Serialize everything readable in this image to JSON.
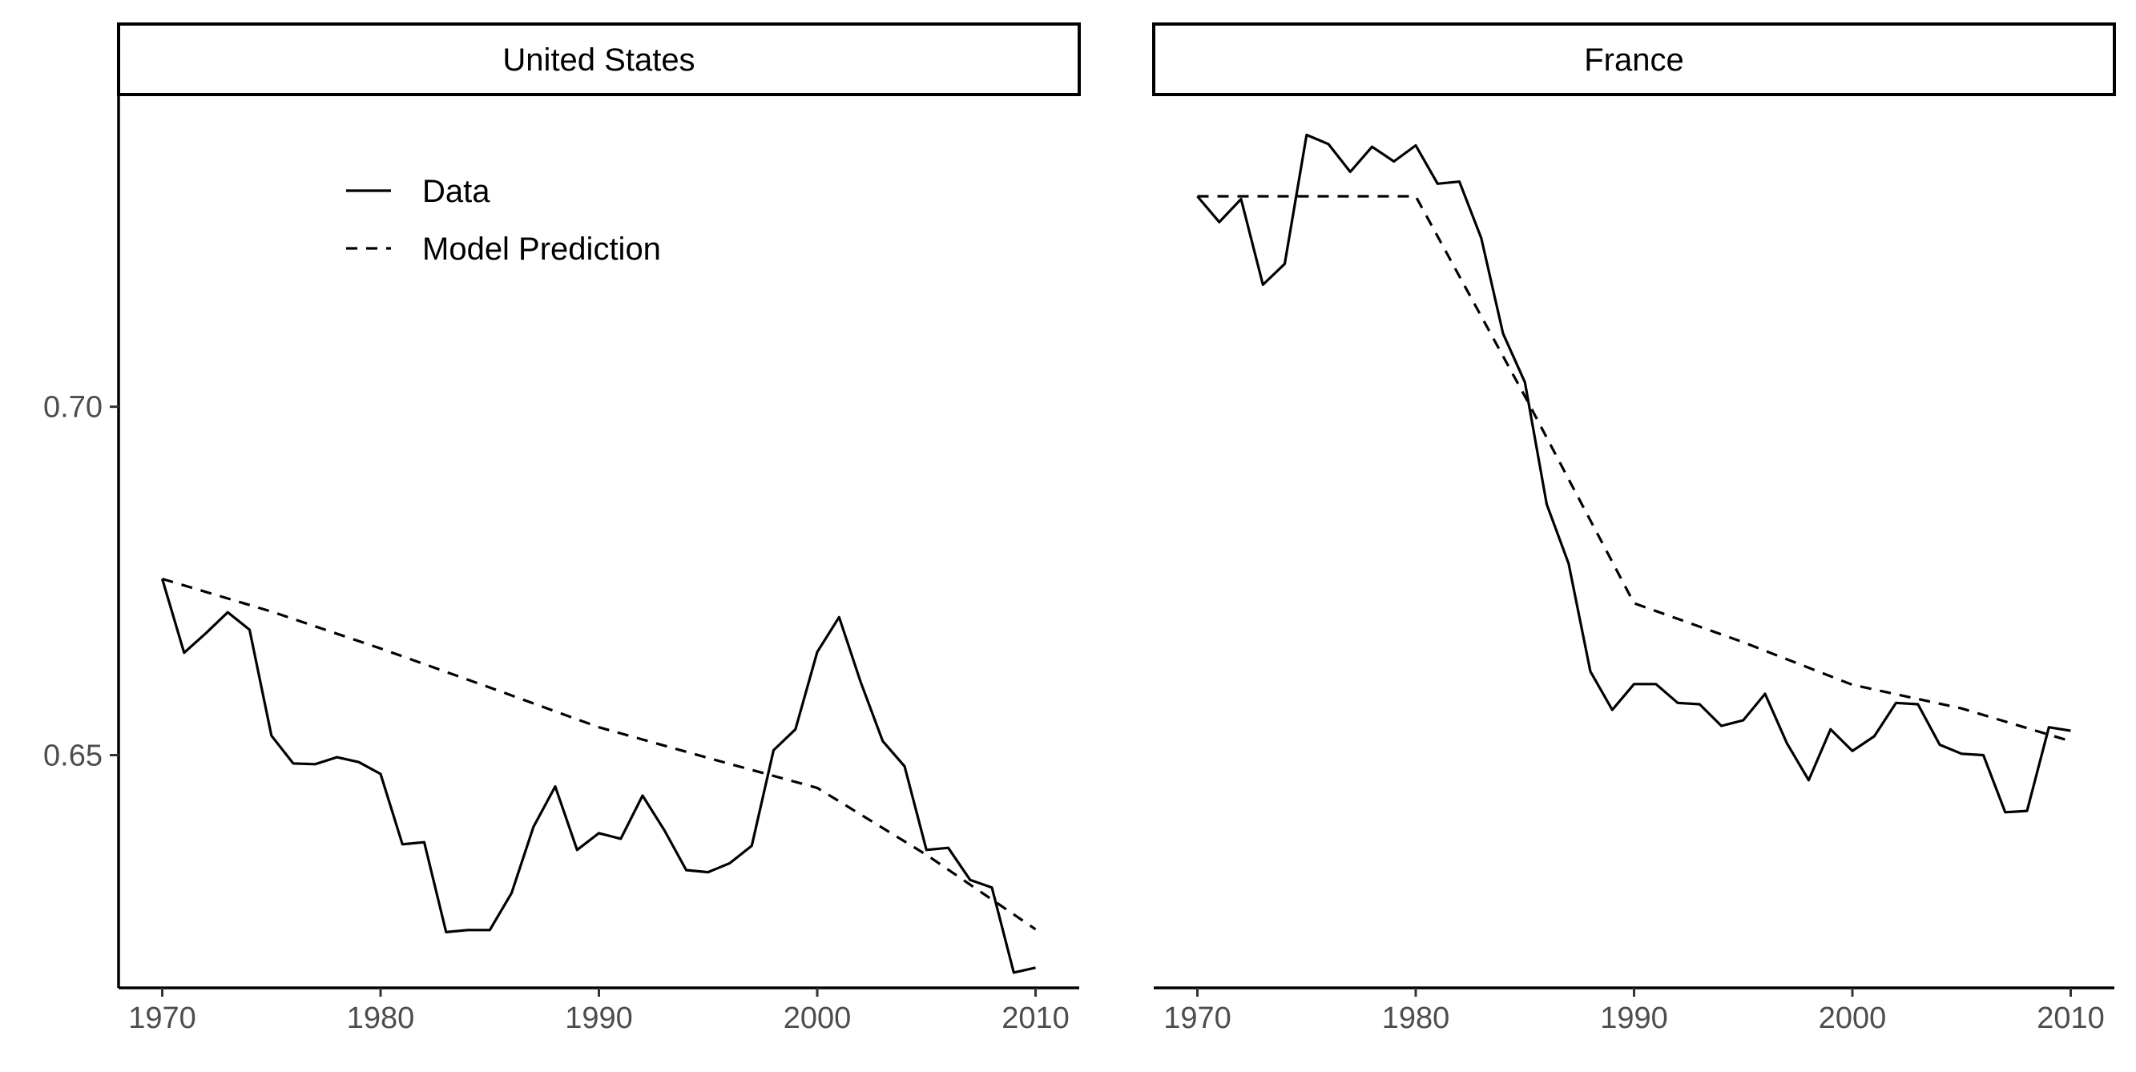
{
  "chart_data": [
    {
      "type": "line",
      "title": "United States",
      "xlabel": "",
      "ylabel": "",
      "xlim": [
        1968,
        2012
      ],
      "ylim": [
        0.6166,
        0.7448
      ],
      "x_ticks": [
        1970,
        1980,
        1990,
        2000,
        2010
      ],
      "y_ticks": [
        0.65,
        0.7
      ],
      "y_tick_labels": [
        "0.65",
        "0.70"
      ],
      "grid": false,
      "legend": {
        "placement": "top-left",
        "entries": [
          {
            "name": "Data",
            "linetype": "solid"
          },
          {
            "name": "Model Prediction",
            "linetype": "dashed"
          }
        ]
      },
      "series": [
        {
          "name": "Data",
          "linetype": "solid",
          "x": [
            1970,
            1971,
            1972,
            1973,
            1974,
            1975,
            1976,
            1977,
            1978,
            1979,
            1980,
            1981,
            1982,
            1983,
            1984,
            1985,
            1986,
            1987,
            1988,
            1989,
            1990,
            1991,
            1992,
            1993,
            1994,
            1995,
            1996,
            1997,
            1998,
            1999,
            2000,
            2001,
            2002,
            2003,
            2004,
            2005,
            2006,
            2007,
            2008,
            2009,
            2010
          ],
          "y": [
            0.6753,
            0.6647,
            0.6675,
            0.6705,
            0.668,
            0.6528,
            0.6488,
            0.6487,
            0.6497,
            0.649,
            0.6473,
            0.6372,
            0.6375,
            0.6246,
            0.6249,
            0.6249,
            0.6302,
            0.6397,
            0.6455,
            0.6364,
            0.6388,
            0.638,
            0.6442,
            0.6392,
            0.6335,
            0.6332,
            0.6345,
            0.637,
            0.6507,
            0.6537,
            0.6648,
            0.6698,
            0.6604,
            0.652,
            0.6484,
            0.6364,
            0.6367,
            0.6321,
            0.631,
            0.6188,
            0.6195
          ]
        },
        {
          "name": "Model Prediction",
          "linetype": "dashed",
          "x": [
            1970,
            1975,
            1980,
            1985,
            1990,
            1995,
            2000,
            2005,
            2010
          ],
          "y": [
            0.6753,
            0.6706,
            0.6653,
            0.6597,
            0.654,
            0.6496,
            0.6453,
            0.6357,
            0.625
          ]
        }
      ]
    },
    {
      "type": "line",
      "title": "France",
      "xlabel": "",
      "ylabel": "",
      "xlim": [
        1968,
        2012
      ],
      "ylim": [
        0.6166,
        0.7448
      ],
      "x_ticks": [
        1970,
        1980,
        1990,
        2000,
        2010
      ],
      "y_ticks": [
        0.65,
        0.7
      ],
      "grid": false,
      "series": [
        {
          "name": "Data",
          "linetype": "solid",
          "x": [
            1970,
            1971,
            1972,
            1973,
            1974,
            1975,
            1976,
            1977,
            1978,
            1979,
            1980,
            1981,
            1982,
            1983,
            1984,
            1985,
            1986,
            1987,
            1988,
            1989,
            1990,
            1991,
            1992,
            1993,
            1994,
            1995,
            1996,
            1997,
            1998,
            1999,
            2000,
            2001,
            2002,
            2003,
            2004,
            2005,
            2006,
            2007,
            2008,
            2009,
            2010
          ],
          "y": [
            0.7302,
            0.7265,
            0.7298,
            0.7175,
            0.7205,
            0.739,
            0.7377,
            0.7337,
            0.7373,
            0.7352,
            0.7375,
            0.732,
            0.7323,
            0.7242,
            0.7105,
            0.7035,
            0.686,
            0.6775,
            0.662,
            0.6565,
            0.6602,
            0.6602,
            0.6575,
            0.6573,
            0.6542,
            0.655,
            0.6588,
            0.6517,
            0.6464,
            0.6537,
            0.6506,
            0.6527,
            0.6575,
            0.6573,
            0.6515,
            0.6502,
            0.65,
            0.6418,
            0.642,
            0.654,
            0.6535
          ]
        },
        {
          "name": "Model Prediction",
          "linetype": "dashed",
          "x": [
            1970,
            1975,
            1980,
            1985,
            1990,
            1995,
            2000,
            2005,
            2010
          ],
          "y": [
            0.7302,
            0.7302,
            0.7302,
            0.7015,
            0.6718,
            0.6662,
            0.6601,
            0.6567,
            0.652
          ]
        }
      ]
    }
  ]
}
